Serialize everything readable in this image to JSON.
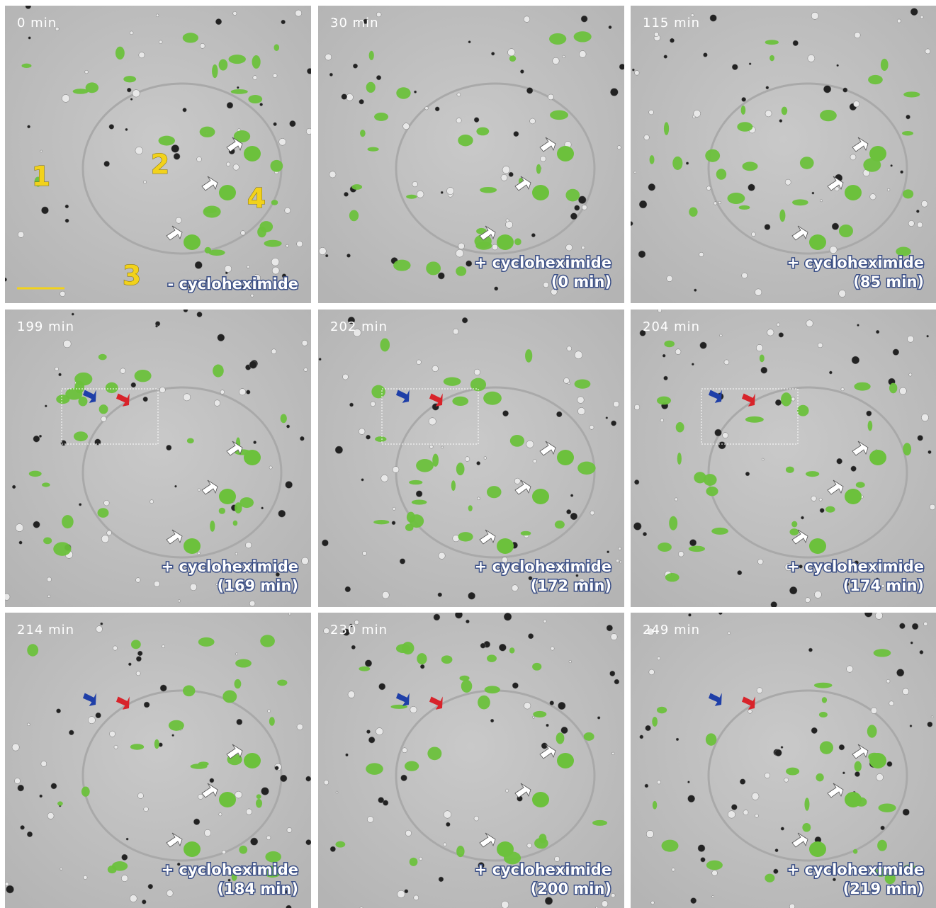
{
  "panels": [
    {
      "time": "0 min",
      "treatment": "- cycloheximide",
      "cell_labels": [
        "1",
        "2",
        "3",
        "4"
      ]
    },
    {
      "time": "30 min",
      "treatment": "+ cycloheximide",
      "elapsed": "(0 min)"
    },
    {
      "time": "115 min",
      "treatment": "+ cycloheximide",
      "elapsed": "(85 min)"
    },
    {
      "time": "199 min",
      "treatment": "+ cycloheximide",
      "elapsed": "(169 min)"
    },
    {
      "time": "202 min",
      "treatment": "+ cycloheximide",
      "elapsed": "(172 min)"
    },
    {
      "time": "204 min",
      "treatment": "+ cycloheximide",
      "elapsed": "(174 min)"
    },
    {
      "time": "214 min",
      "treatment": "+ cycloheximide",
      "elapsed": "(184 min)"
    },
    {
      "time": "230 min",
      "treatment": "+ cycloheximide",
      "elapsed": "(200 min)"
    },
    {
      "time": "249 min",
      "treatment": "+ cycloheximide",
      "elapsed": "(219 min)"
    }
  ]
}
